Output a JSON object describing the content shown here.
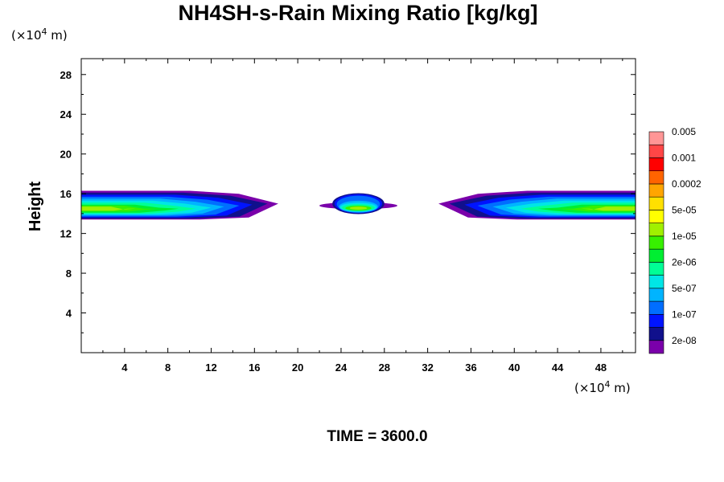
{
  "chart_data": {
    "type": "contour",
    "title": "NH4SH-s-Rain Mixing Ratio [kg/kg]",
    "ylabel": "Height",
    "x_unit": {
      "prefix": "(×10",
      "exp": "4",
      "suffix": " m)"
    },
    "y_unit": {
      "prefix": "(×10",
      "exp": "4",
      "suffix": " m)"
    },
    "footer": "TIME = 3600.0",
    "xlim": [
      0,
      51.2
    ],
    "ylim": [
      0,
      29.6
    ],
    "x_ticks": [
      4,
      8,
      12,
      16,
      20,
      24,
      28,
      32,
      36,
      40,
      44,
      48
    ],
    "y_ticks": [
      4,
      8,
      12,
      16,
      20,
      24,
      28
    ],
    "levels": [
      "2e-08",
      "1e-07",
      "5e-07",
      "2e-06",
      "1e-05",
      "5e-05",
      "0.0002",
      "0.001",
      "0.005"
    ],
    "colors": [
      "#7a00aa",
      "#10108c",
      "#0014ff",
      "#006eff",
      "#00b4ff",
      "#00e6e6",
      "#00ff96",
      "#00ee32",
      "#37f000",
      "#a0f000",
      "#ffff00",
      "#ffe000",
      "#ffa500",
      "#ff6400",
      "#ff0000",
      "#ff4646",
      "#ff9696"
    ],
    "features": [
      {
        "name": "left-cloud-band",
        "x_range": [
          0,
          18
        ],
        "y_range": [
          13.5,
          16.2
        ]
      },
      {
        "name": "center-cloud",
        "x_range": [
          22.5,
          29
        ],
        "y_range": [
          14,
          16
        ]
      },
      {
        "name": "right-cloud-band",
        "x_range": [
          33,
          51.2
        ],
        "y_range": [
          13.5,
          16.2
        ]
      }
    ]
  }
}
